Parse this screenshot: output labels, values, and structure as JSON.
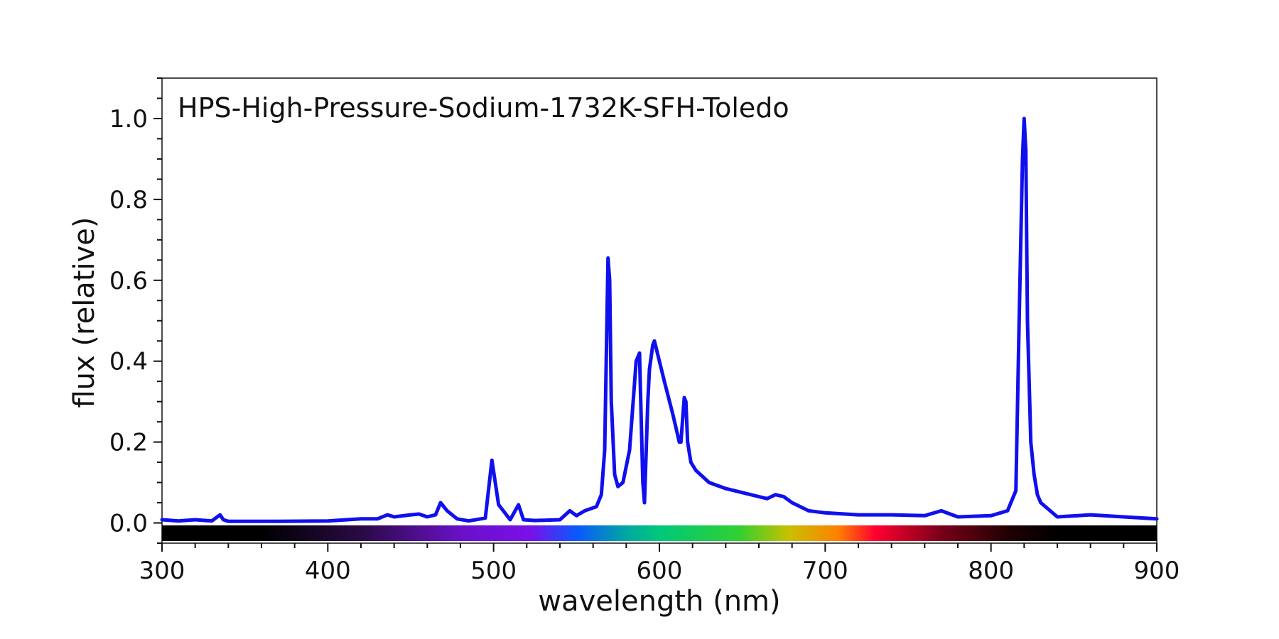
{
  "chart_data": {
    "type": "line",
    "title": "HPS-High-Pressure-Sodium-1732K-SFH-Toledo",
    "xlabel": "wavelength (nm)",
    "ylabel": "flux (relative)",
    "xlim": [
      300,
      900
    ],
    "ylim": [
      -0.05,
      1.1
    ],
    "x_ticks": [
      300,
      400,
      500,
      600,
      700,
      800,
      900
    ],
    "x_tick_labels": [
      "300",
      "400",
      "500",
      "600",
      "700",
      "800",
      "900"
    ],
    "y_ticks": [
      0.0,
      0.2,
      0.4,
      0.6,
      0.8,
      1.0
    ],
    "y_tick_labels": [
      "0.0",
      "0.2",
      "0.4",
      "0.6",
      "0.8",
      "1.0"
    ],
    "grid": false,
    "legend": "none",
    "line_color": "#1010ee",
    "spectrum_colorbar": true,
    "series": [
      {
        "x": [
          300,
          310,
          320,
          330,
          335,
          337,
          340,
          350,
          370,
          400,
          420,
          430,
          436,
          440,
          450,
          455,
          460,
          465,
          468,
          472,
          478,
          485,
          495,
          499,
          503,
          510,
          515,
          518,
          525,
          540,
          546,
          550,
          555,
          562,
          565,
          567,
          569,
          570,
          571,
          573,
          575,
          578,
          582,
          586,
          588,
          590,
          591,
          593,
          594,
          596,
          597,
          600,
          603,
          608,
          612,
          613,
          615,
          616,
          617,
          619,
          622,
          630,
          640,
          650,
          660,
          665,
          670,
          675,
          680,
          690,
          700,
          720,
          740,
          760,
          770,
          780,
          800,
          810,
          815,
          817,
          819,
          820,
          821,
          822,
          824,
          826,
          828,
          830,
          840,
          860,
          880,
          900
        ],
        "y": [
          0.008,
          0.005,
          0.008,
          0.005,
          0.02,
          0.008,
          0.004,
          0.004,
          0.004,
          0.005,
          0.01,
          0.01,
          0.02,
          0.015,
          0.02,
          0.022,
          0.015,
          0.02,
          0.05,
          0.03,
          0.01,
          0.005,
          0.012,
          0.155,
          0.045,
          0.008,
          0.045,
          0.008,
          0.006,
          0.008,
          0.03,
          0.018,
          0.03,
          0.04,
          0.07,
          0.18,
          0.655,
          0.6,
          0.3,
          0.12,
          0.09,
          0.1,
          0.18,
          0.4,
          0.42,
          0.1,
          0.05,
          0.3,
          0.38,
          0.44,
          0.45,
          0.4,
          0.35,
          0.27,
          0.2,
          0.2,
          0.31,
          0.3,
          0.2,
          0.15,
          0.13,
          0.1,
          0.085,
          0.075,
          0.065,
          0.06,
          0.07,
          0.065,
          0.05,
          0.03,
          0.025,
          0.02,
          0.02,
          0.018,
          0.03,
          0.015,
          0.018,
          0.03,
          0.08,
          0.5,
          0.9,
          1.0,
          0.92,
          0.5,
          0.2,
          0.12,
          0.07,
          0.05,
          0.015,
          0.02,
          0.015,
          0.01
        ]
      }
    ]
  }
}
